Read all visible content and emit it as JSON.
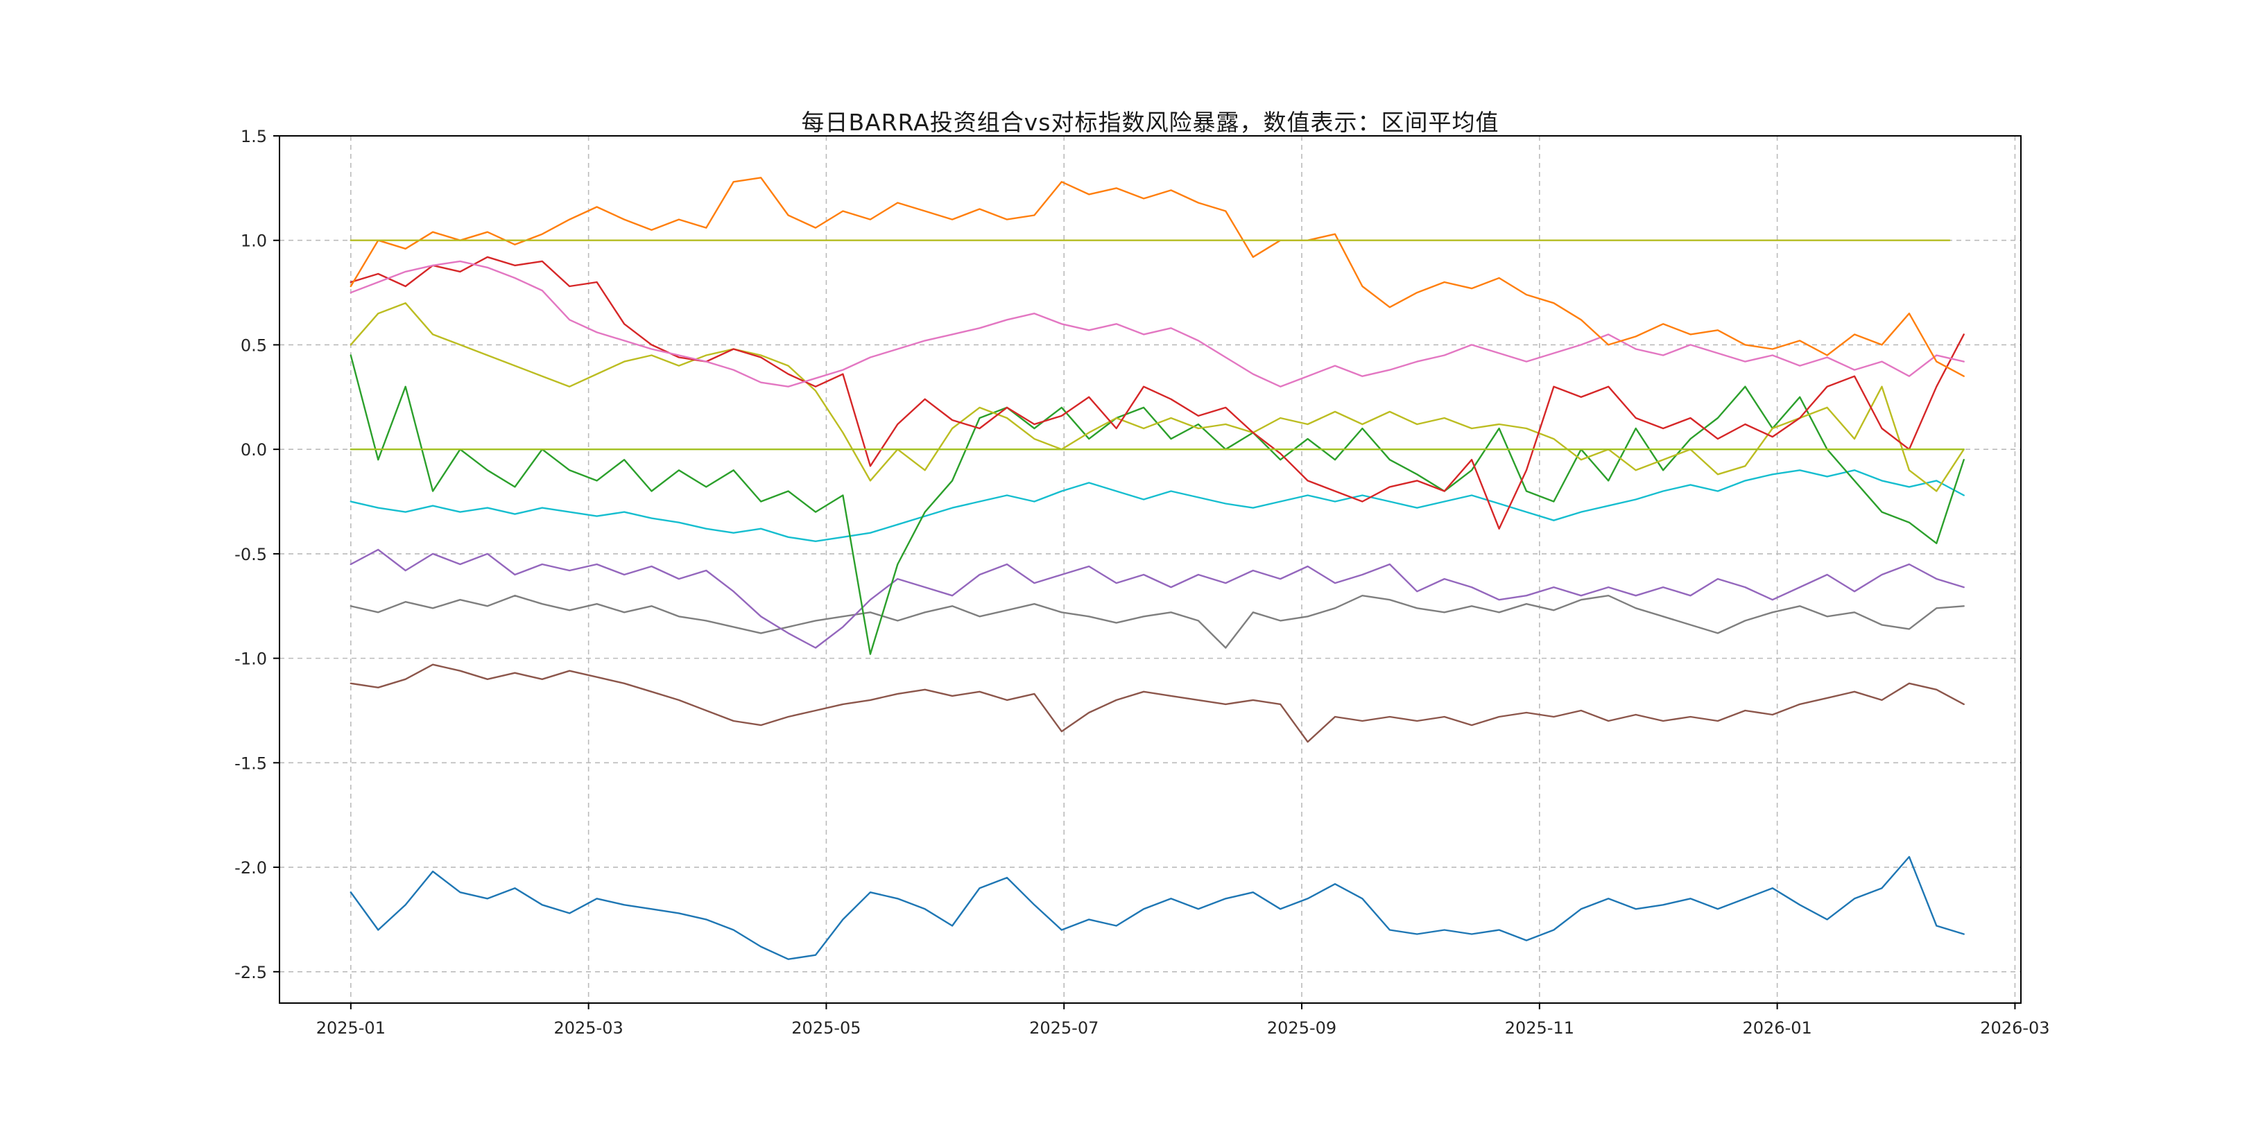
{
  "chart_data": {
    "type": "line",
    "title": "每日BARRA投资组合vs对标指数风险暴露，数值表示：区间平均值",
    "xlabel": "",
    "ylabel": "",
    "x_unit": "months_since_2025-01",
    "x_step": 0.23,
    "xlim": [
      -0.6,
      14.05
    ],
    "ylim": [
      -2.65,
      1.5
    ],
    "grid": "dashed",
    "legend": "none",
    "x_ticks": {
      "positions": [
        0,
        2,
        4,
        6,
        8,
        10,
        12,
        14
      ],
      "labels": [
        "2025-01",
        "2025-03",
        "2025-05",
        "2025-07",
        "2025-09",
        "2025-11",
        "2026-01",
        "2026-03"
      ]
    },
    "y_ticks": {
      "positions": [
        1.5,
        1.0,
        0.5,
        0.0,
        -0.5,
        -1.0,
        -1.5,
        -2.0,
        -2.5
      ],
      "labels": [
        "1.5",
        "1.0",
        "0.5",
        "0.0",
        "-0.5",
        "-1.0",
        "-1.5",
        "-2.0",
        "-2.5"
      ]
    },
    "series": [
      {
        "name": "gray",
        "color": "#7f7f7f",
        "values": [
          -0.75,
          -0.78,
          -0.73,
          -0.76,
          -0.72,
          -0.75,
          -0.7,
          -0.74,
          -0.77,
          -0.74,
          -0.78,
          -0.75,
          -0.8,
          -0.82,
          -0.85,
          -0.88,
          -0.85,
          -0.82,
          -0.8,
          -0.78,
          -0.82,
          -0.78,
          -0.75,
          -0.8,
          -0.77,
          -0.74,
          -0.78,
          -0.8,
          -0.83,
          -0.8,
          -0.78,
          -0.82,
          -0.95,
          -0.78,
          -0.82,
          -0.8,
          -0.76,
          -0.7,
          -0.72,
          -0.76,
          -0.78,
          -0.75,
          -0.78,
          -0.74,
          -0.77,
          -0.72,
          -0.7,
          -0.76,
          -0.8,
          -0.84,
          -0.88,
          -0.82,
          -0.78,
          -0.75,
          -0.8,
          -0.78,
          -0.84,
          -0.86,
          -0.76,
          -0.75
        ]
      },
      {
        "name": "brown",
        "color": "#8c564b",
        "values": [
          -1.12,
          -1.14,
          -1.1,
          -1.03,
          -1.06,
          -1.1,
          -1.07,
          -1.1,
          -1.06,
          -1.09,
          -1.12,
          -1.16,
          -1.2,
          -1.25,
          -1.3,
          -1.32,
          -1.28,
          -1.25,
          -1.22,
          -1.2,
          -1.17,
          -1.15,
          -1.18,
          -1.16,
          -1.2,
          -1.17,
          -1.35,
          -1.26,
          -1.2,
          -1.16,
          -1.18,
          -1.2,
          -1.22,
          -1.2,
          -1.22,
          -1.4,
          -1.28,
          -1.3,
          -1.28,
          -1.3,
          -1.28,
          -1.32,
          -1.28,
          -1.26,
          -1.28,
          -1.25,
          -1.3,
          -1.27,
          -1.3,
          -1.28,
          -1.3,
          -1.25,
          -1.27,
          -1.22,
          -1.19,
          -1.16,
          -1.2,
          -1.12,
          -1.15,
          -1.22
        ]
      },
      {
        "name": "purple",
        "color": "#9467bd",
        "values": [
          -0.55,
          -0.48,
          -0.58,
          -0.5,
          -0.55,
          -0.5,
          -0.6,
          -0.55,
          -0.58,
          -0.55,
          -0.6,
          -0.56,
          -0.62,
          -0.58,
          -0.68,
          -0.8,
          -0.88,
          -0.95,
          -0.85,
          -0.72,
          -0.62,
          -0.66,
          -0.7,
          -0.6,
          -0.55,
          -0.64,
          -0.6,
          -0.56,
          -0.64,
          -0.6,
          -0.66,
          -0.6,
          -0.64,
          -0.58,
          -0.62,
          -0.56,
          -0.64,
          -0.6,
          -0.55,
          -0.68,
          -0.62,
          -0.66,
          -0.72,
          -0.7,
          -0.66,
          -0.7,
          -0.66,
          -0.7,
          -0.66,
          -0.7,
          -0.62,
          -0.66,
          -0.72,
          -0.66,
          -0.6,
          -0.68,
          -0.6,
          -0.55,
          -0.62,
          -0.66
        ]
      },
      {
        "name": "blue",
        "color": "#1f77b4",
        "values": [
          -2.12,
          -2.3,
          -2.18,
          -2.02,
          -2.12,
          -2.15,
          -2.1,
          -2.18,
          -2.22,
          -2.15,
          -2.18,
          -2.2,
          -2.22,
          -2.25,
          -2.3,
          -2.38,
          -2.44,
          -2.42,
          -2.25,
          -2.12,
          -2.15,
          -2.2,
          -2.28,
          -2.1,
          -2.05,
          -2.18,
          -2.3,
          -2.25,
          -2.28,
          -2.2,
          -2.15,
          -2.2,
          -2.15,
          -2.12,
          -2.2,
          -2.15,
          -2.08,
          -2.15,
          -2.3,
          -2.32,
          -2.3,
          -2.32,
          -2.3,
          -2.35,
          -2.3,
          -2.2,
          -2.15,
          -2.2,
          -2.18,
          -2.15,
          -2.2,
          -2.15,
          -2.1,
          -2.18,
          -2.25,
          -2.15,
          -2.1,
          -1.95,
          -2.28,
          -2.32
        ]
      },
      {
        "name": "cyan",
        "color": "#17becf",
        "values": [
          -0.25,
          -0.28,
          -0.3,
          -0.27,
          -0.3,
          -0.28,
          -0.31,
          -0.28,
          -0.3,
          -0.32,
          -0.3,
          -0.33,
          -0.35,
          -0.38,
          -0.4,
          -0.38,
          -0.42,
          -0.44,
          -0.42,
          -0.4,
          -0.36,
          -0.32,
          -0.28,
          -0.25,
          -0.22,
          -0.25,
          -0.2,
          -0.16,
          -0.2,
          -0.24,
          -0.2,
          -0.23,
          -0.26,
          -0.28,
          -0.25,
          -0.22,
          -0.25,
          -0.22,
          -0.25,
          -0.28,
          -0.25,
          -0.22,
          -0.26,
          -0.3,
          -0.34,
          -0.3,
          -0.27,
          -0.24,
          -0.2,
          -0.17,
          -0.2,
          -0.15,
          -0.12,
          -0.1,
          -0.13,
          -0.1,
          -0.15,
          -0.18,
          -0.15,
          -0.22
        ]
      },
      {
        "name": "green",
        "color": "#2ca02c",
        "values": [
          0.45,
          -0.05,
          0.3,
          -0.2,
          0.0,
          -0.1,
          -0.18,
          0.0,
          -0.1,
          -0.15,
          -0.05,
          -0.2,
          -0.1,
          -0.18,
          -0.1,
          -0.25,
          -0.2,
          -0.3,
          -0.22,
          -0.98,
          -0.55,
          -0.3,
          -0.15,
          0.15,
          0.2,
          0.1,
          0.2,
          0.05,
          0.15,
          0.2,
          0.05,
          0.12,
          0.0,
          0.08,
          -0.05,
          0.05,
          -0.05,
          0.1,
          -0.05,
          -0.12,
          -0.2,
          -0.1,
          0.1,
          -0.2,
          -0.25,
          0.0,
          -0.15,
          0.1,
          -0.1,
          0.05,
          0.15,
          0.3,
          0.1,
          0.25,
          0.0,
          -0.15,
          -0.3,
          -0.35,
          -0.45,
          -0.05
        ]
      },
      {
        "name": "olive",
        "color": "#bcbd22",
        "values": [
          0.5,
          0.65,
          0.7,
          0.55,
          0.5,
          0.45,
          0.4,
          0.35,
          0.3,
          0.36,
          0.42,
          0.45,
          0.4,
          0.45,
          0.48,
          0.45,
          0.4,
          0.28,
          0.08,
          -0.15,
          0.0,
          -0.1,
          0.1,
          0.2,
          0.15,
          0.05,
          0.0,
          0.08,
          0.15,
          0.1,
          0.15,
          0.1,
          0.12,
          0.08,
          0.15,
          0.12,
          0.18,
          0.12,
          0.18,
          0.12,
          0.15,
          0.1,
          0.12,
          0.1,
          0.05,
          -0.05,
          0.0,
          -0.1,
          -0.05,
          0.0,
          -0.12,
          -0.08,
          0.1,
          0.15,
          0.2,
          0.05,
          0.3,
          -0.1,
          -0.2,
          0.0
        ]
      },
      {
        "name": "red",
        "color": "#d62728",
        "values": [
          0.8,
          0.84,
          0.78,
          0.88,
          0.85,
          0.92,
          0.88,
          0.9,
          0.78,
          0.8,
          0.6,
          0.5,
          0.44,
          0.42,
          0.48,
          0.44,
          0.36,
          0.3,
          0.36,
          -0.08,
          0.12,
          0.24,
          0.14,
          0.1,
          0.2,
          0.12,
          0.16,
          0.25,
          0.1,
          0.3,
          0.24,
          0.16,
          0.2,
          0.08,
          -0.02,
          -0.15,
          -0.2,
          -0.25,
          -0.18,
          -0.15,
          -0.2,
          -0.05,
          -0.38,
          -0.1,
          0.3,
          0.25,
          0.3,
          0.15,
          0.1,
          0.15,
          0.05,
          0.12,
          0.06,
          0.15,
          0.3,
          0.35,
          0.1,
          0.0,
          0.3,
          0.55
        ]
      },
      {
        "name": "pink",
        "color": "#e377c2",
        "values": [
          0.75,
          0.8,
          0.85,
          0.88,
          0.9,
          0.87,
          0.82,
          0.76,
          0.62,
          0.56,
          0.52,
          0.48,
          0.45,
          0.42,
          0.38,
          0.32,
          0.3,
          0.34,
          0.38,
          0.44,
          0.48,
          0.52,
          0.55,
          0.58,
          0.62,
          0.65,
          0.6,
          0.57,
          0.6,
          0.55,
          0.58,
          0.52,
          0.44,
          0.36,
          0.3,
          0.35,
          0.4,
          0.35,
          0.38,
          0.42,
          0.45,
          0.5,
          0.46,
          0.42,
          0.46,
          0.5,
          0.55,
          0.48,
          0.45,
          0.5,
          0.46,
          0.42,
          0.45,
          0.4,
          0.44,
          0.38,
          0.42,
          0.35,
          0.45,
          0.42
        ]
      },
      {
        "name": "orange",
        "color": "#ff7f0e",
        "values": [
          0.78,
          1.0,
          0.96,
          1.04,
          1.0,
          1.04,
          0.98,
          1.03,
          1.1,
          1.16,
          1.1,
          1.05,
          1.1,
          1.06,
          1.28,
          1.3,
          1.12,
          1.06,
          1.14,
          1.1,
          1.18,
          1.14,
          1.1,
          1.15,
          1.1,
          1.12,
          1.28,
          1.22,
          1.25,
          1.2,
          1.24,
          1.18,
          1.14,
          0.92,
          1.0,
          1.0,
          1.03,
          0.78,
          0.68,
          0.75,
          0.8,
          0.77,
          0.82,
          0.74,
          0.7,
          0.62,
          0.5,
          0.54,
          0.6,
          0.55,
          0.57,
          0.5,
          0.48,
          0.52,
          0.45,
          0.55,
          0.5,
          0.65,
          0.42,
          0.35
        ]
      },
      {
        "name": "flat-one",
        "color": "#b5bd22",
        "x": [
          0,
          13.45
        ],
        "values": [
          1.0,
          1.0
        ]
      },
      {
        "name": "flat-zero",
        "color": "#a3c122",
        "x": [
          0,
          13.57
        ],
        "values": [
          0.0,
          0.0
        ]
      }
    ]
  }
}
